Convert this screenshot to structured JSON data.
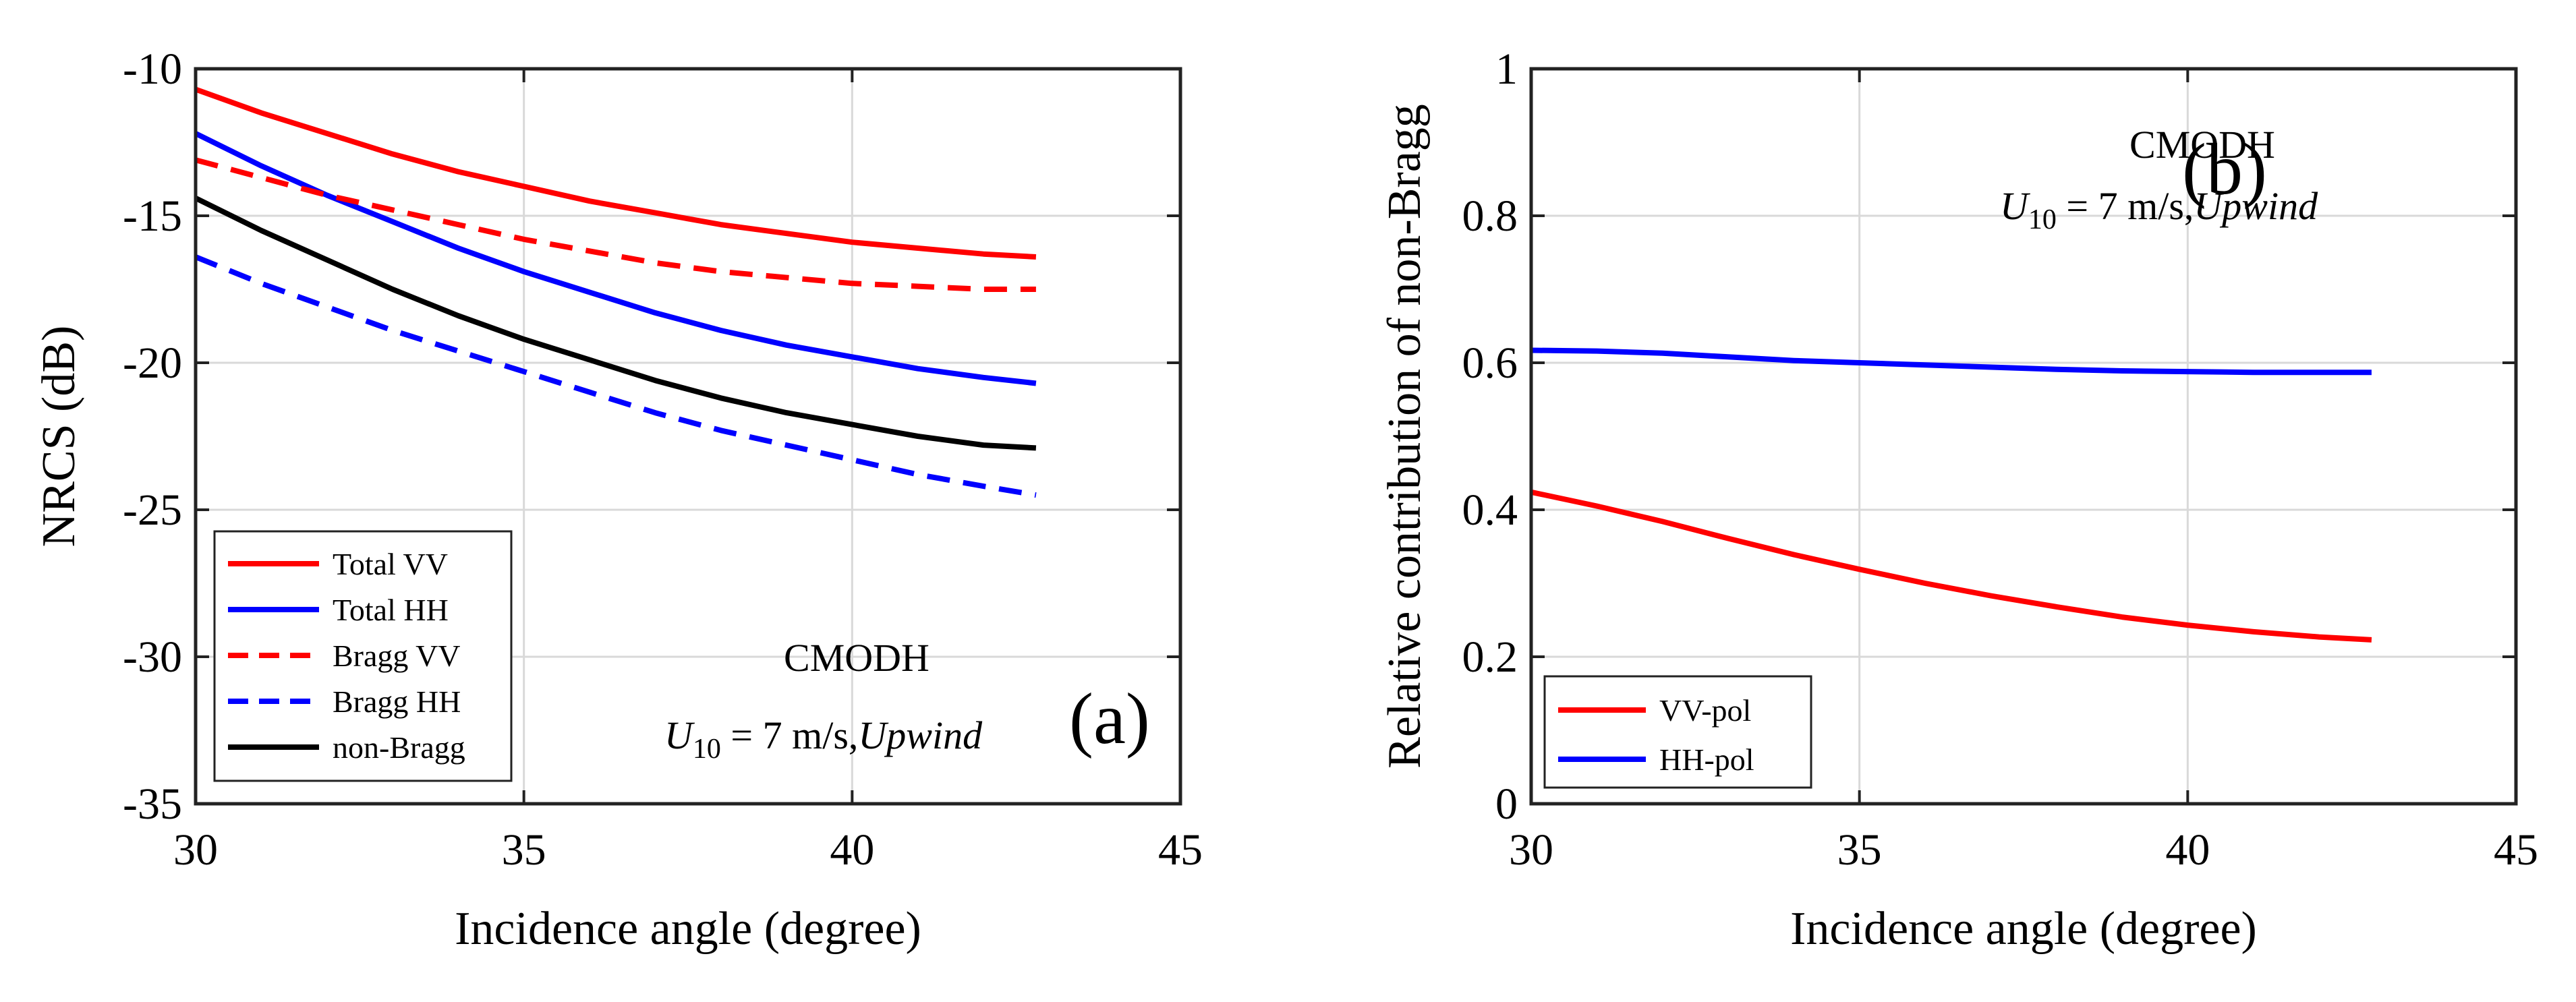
{
  "chart_data": [
    {
      "type": "line",
      "panel": "(a)",
      "xlabel": "Incidence angle (degree)",
      "ylabel": "NRCS (dB)",
      "xlim": [
        30,
        45
      ],
      "ylim": [
        -35,
        -10
      ],
      "xticks": [
        30,
        35,
        40,
        45
      ],
      "yticks": [
        -35,
        -30,
        -25,
        -20,
        -15,
        -10
      ],
      "xtick_labels": [
        "30",
        "35",
        "40",
        "45"
      ],
      "ytick_labels": [
        "-35",
        "-30",
        "-25",
        "-20",
        "-15",
        "-10"
      ],
      "grid": true,
      "legend_position": "bottom-left",
      "annotation_model": "CMODH",
      "annotation_u": "U",
      "annotation_sub": "10",
      "annotation_rest": " = 7 m/s,",
      "annotation_dir": "Upwind",
      "x": [
        30,
        31,
        32,
        33,
        34,
        35,
        36,
        37,
        38,
        39,
        40,
        41,
        42,
        42.8
      ],
      "series": [
        {
          "name": "Total VV",
          "color": "#ff0000",
          "dash": "solid",
          "values": [
            -10.7,
            -11.5,
            -12.2,
            -12.9,
            -13.5,
            -14.0,
            -14.5,
            -14.9,
            -15.3,
            -15.6,
            -15.9,
            -16.1,
            -16.3,
            -16.4
          ]
        },
        {
          "name": "Total HH",
          "color": "#0000ff",
          "dash": "solid",
          "values": [
            -12.2,
            -13.3,
            -14.3,
            -15.2,
            -16.1,
            -16.9,
            -17.6,
            -18.3,
            -18.9,
            -19.4,
            -19.8,
            -20.2,
            -20.5,
            -20.7
          ]
        },
        {
          "name": "Bragg VV",
          "color": "#ff0000",
          "dash": "dashed",
          "values": [
            -13.1,
            -13.7,
            -14.3,
            -14.8,
            -15.3,
            -15.8,
            -16.2,
            -16.6,
            -16.9,
            -17.1,
            -17.3,
            -17.4,
            -17.5,
            -17.5
          ]
        },
        {
          "name": "Bragg HH",
          "color": "#0000ff",
          "dash": "dashed",
          "values": [
            -16.4,
            -17.3,
            -18.1,
            -18.9,
            -19.6,
            -20.3,
            -21.0,
            -21.7,
            -22.3,
            -22.8,
            -23.3,
            -23.8,
            -24.2,
            -24.5
          ]
        },
        {
          "name": "non-Bragg",
          "color": "#000000",
          "dash": "solid",
          "values": [
            -14.4,
            -15.5,
            -16.5,
            -17.5,
            -18.4,
            -19.2,
            -19.9,
            -20.6,
            -21.2,
            -21.7,
            -22.1,
            -22.5,
            -22.8,
            -22.9
          ]
        }
      ]
    },
    {
      "type": "line",
      "panel": "(b)",
      "xlabel": "Incidence angle (degree)",
      "ylabel": "Relative contribution of non-Bragg",
      "xlim": [
        30,
        45
      ],
      "ylim": [
        0,
        1
      ],
      "xticks": [
        30,
        35,
        40,
        45
      ],
      "yticks": [
        0,
        0.2,
        0.4,
        0.6,
        0.8,
        1
      ],
      "xtick_labels": [
        "30",
        "35",
        "40",
        "45"
      ],
      "ytick_labels": [
        "0",
        "0.2",
        "0.4",
        "0.6",
        "0.8",
        "1"
      ],
      "grid": true,
      "legend_position": "bottom-left",
      "annotation_model": "CMODH",
      "annotation_u": "U",
      "annotation_sub": "10",
      "annotation_rest": " = 7 m/s,",
      "annotation_dir": "Upwind",
      "x": [
        30,
        31,
        32,
        33,
        34,
        35,
        36,
        37,
        38,
        39,
        40,
        41,
        42,
        42.8
      ],
      "series": [
        {
          "name": "VV-pol",
          "color": "#ff0000",
          "dash": "solid",
          "values": [
            0.424,
            0.405,
            0.384,
            0.361,
            0.339,
            0.319,
            0.3,
            0.283,
            0.268,
            0.254,
            0.243,
            0.234,
            0.227,
            0.223
          ]
        },
        {
          "name": "HH-pol",
          "color": "#0000ff",
          "dash": "solid",
          "values": [
            0.617,
            0.616,
            0.613,
            0.608,
            0.603,
            0.6,
            0.597,
            0.594,
            0.591,
            0.589,
            0.588,
            0.587,
            0.587,
            0.587
          ]
        }
      ]
    }
  ]
}
